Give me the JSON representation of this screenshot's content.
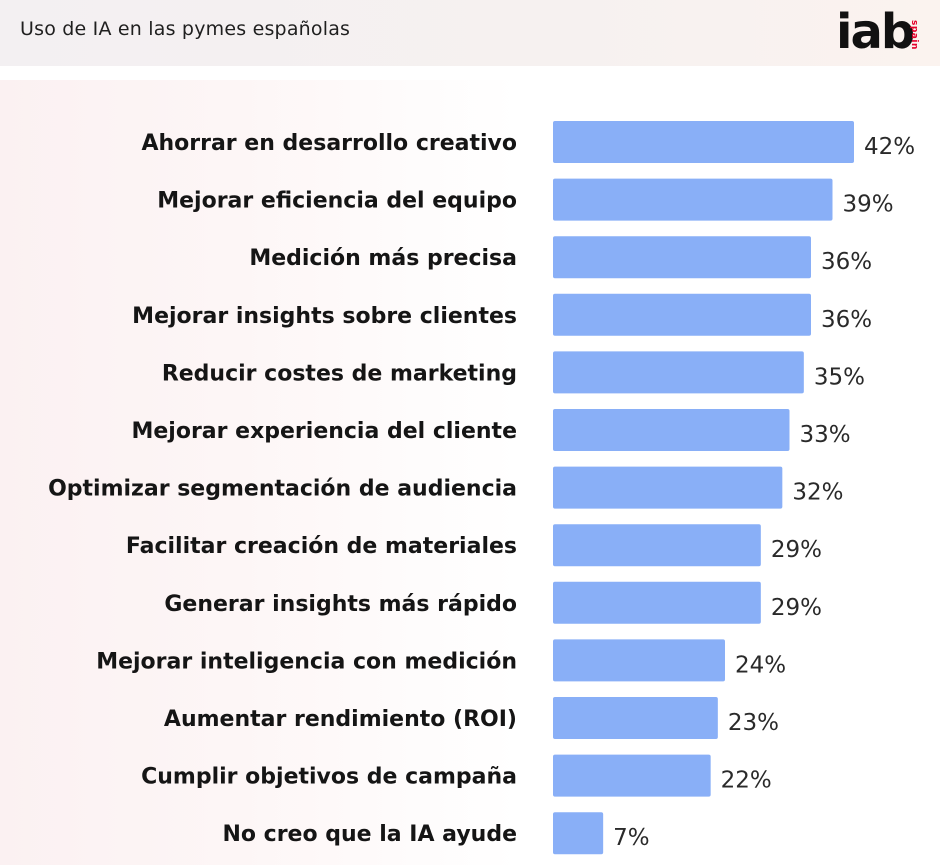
{
  "header": {
    "title": "Uso de IA en las pymes españolas",
    "logo_text": "iab",
    "logo_sub": "spain"
  },
  "colors": {
    "bar": "#89aff7",
    "logo_accent": "#e4002b"
  },
  "chart_data": {
    "type": "bar",
    "orientation": "horizontal",
    "title": "Uso de IA en las pymes españolas",
    "xlabel": "",
    "ylabel": "",
    "grid": false,
    "legend": "none",
    "xlim": [
      0,
      42
    ],
    "categories": [
      "Ahorrar en desarrollo creativo",
      "Mejorar eficiencia del equipo",
      "Medición más precisa",
      "Mejorar insights sobre clientes",
      "Reducir costes de marketing",
      "Mejorar experiencia del cliente",
      "Optimizar segmentación de audiencia",
      "Facilitar creación de materiales",
      "Generar insights más rápido",
      "Mejorar inteligencia con medición",
      "Aumentar rendimiento (ROI)",
      "Cumplir objetivos de campaña",
      "No creo que la IA ayude"
    ],
    "values": [
      42,
      39,
      36,
      36,
      35,
      33,
      32,
      29,
      29,
      24,
      23,
      22,
      7
    ],
    "value_labels": [
      "42%",
      "39%",
      "36%",
      "36%",
      "35%",
      "33%",
      "32%",
      "29%",
      "29%",
      "24%",
      "23%",
      "22%",
      "7%"
    ]
  }
}
